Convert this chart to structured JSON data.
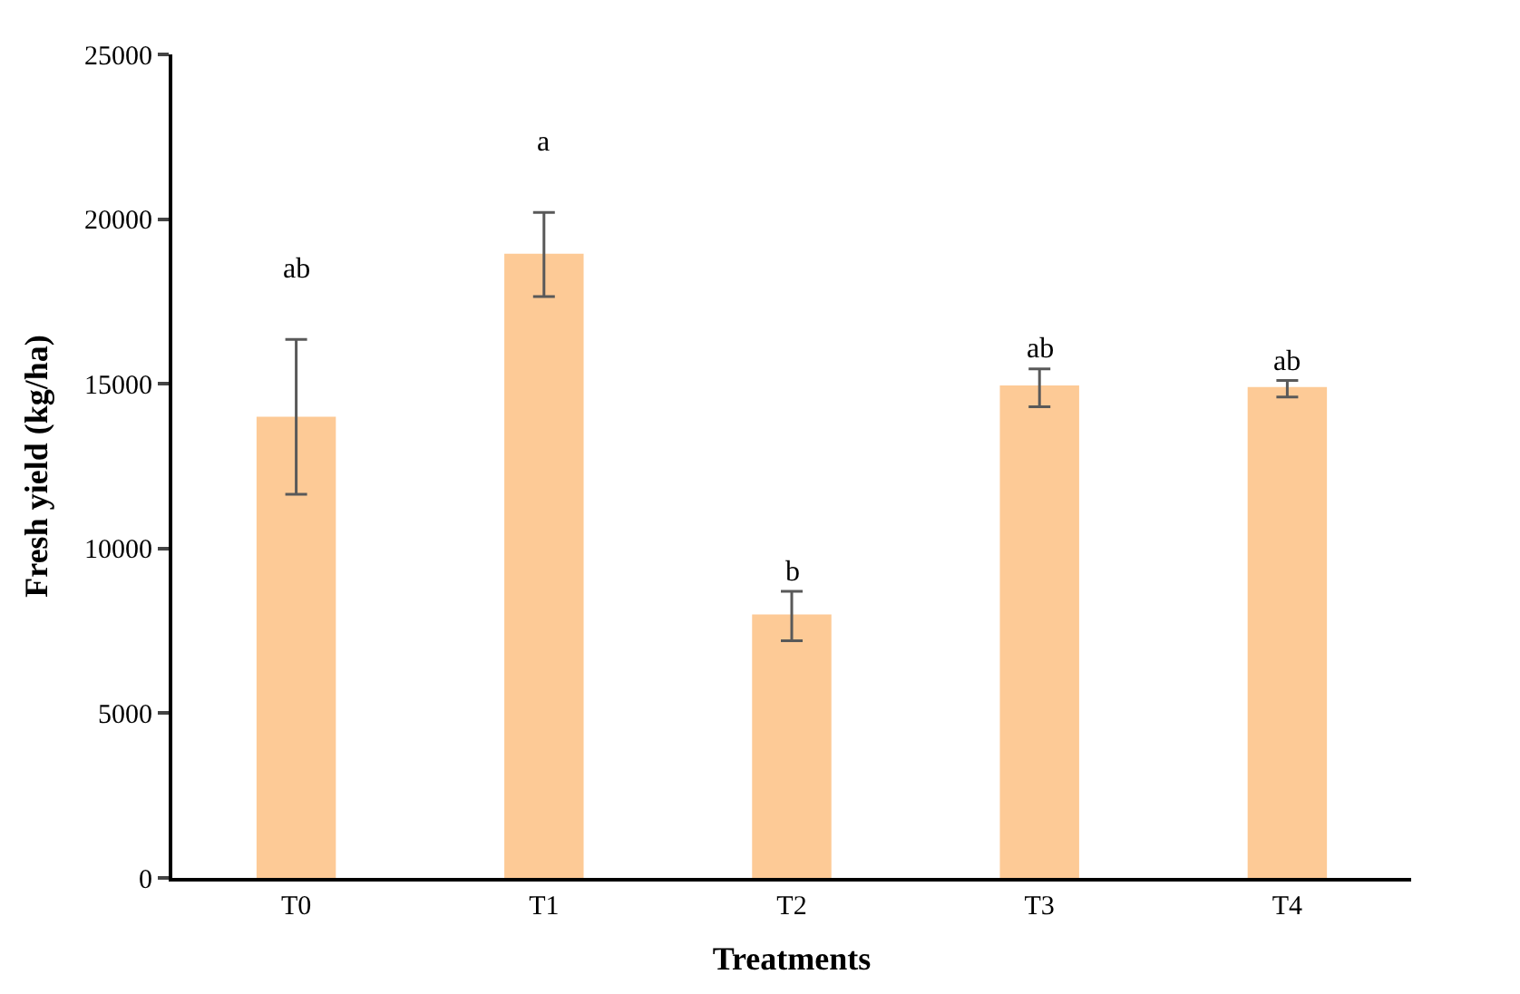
{
  "chart_data": {
    "type": "bar",
    "xlabel": "Treatments",
    "ylabel": "Fresh yield (kg/ha)",
    "categories": [
      "T0",
      "T1",
      "T2",
      "T3",
      "T4"
    ],
    "values": [
      14000,
      18950,
      8000,
      14950,
      14900
    ],
    "errors": [
      [
        11650,
        16350
      ],
      [
        17650,
        20200
      ],
      [
        7200,
        8700
      ],
      [
        14300,
        15450
      ],
      [
        14600,
        15100
      ]
    ],
    "color": "#fdca96",
    "ylim": [
      0,
      25000
    ],
    "yticks": [
      0,
      5000,
      10000,
      15000,
      20000,
      25000
    ],
    "annotations": [
      "ab",
      "a",
      "b",
      "ab",
      "ab"
    ]
  }
}
